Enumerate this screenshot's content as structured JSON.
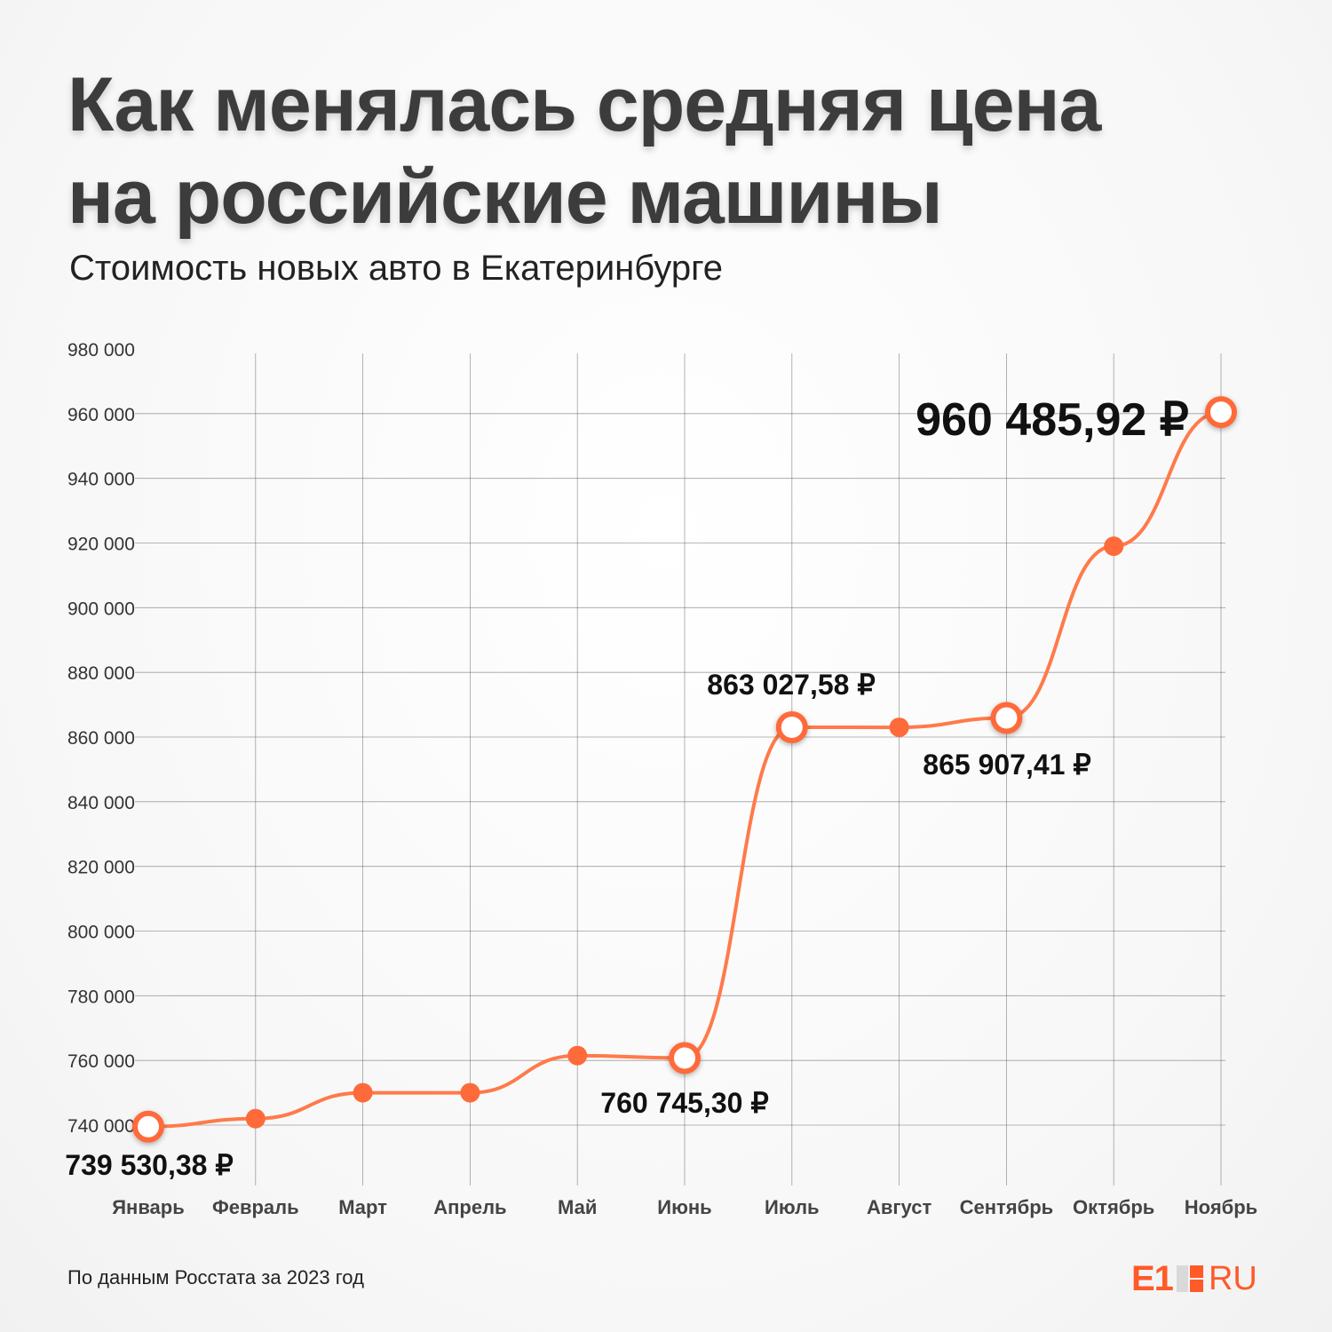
{
  "title_lines": [
    "Как менялась средняя цена",
    "на российские машины"
  ],
  "subtitle": "Стоимость новых авто в Екатеринбурге",
  "source": "По данным Росстата за 2023 год",
  "logo": {
    "e1": "E1",
    "ru": "RU"
  },
  "colors": {
    "line": "#ff7a4a",
    "point": "#ff6a3a",
    "grid": "#555555",
    "text": "#222222"
  },
  "chart_data": {
    "type": "line",
    "categories": [
      "Январь",
      "Февраль",
      "Март",
      "Апрель",
      "Май",
      "Июнь",
      "Июль",
      "Август",
      "Сентябрь",
      "Октябрь",
      "Ноябрь"
    ],
    "values": [
      739530.38,
      742000,
      750000,
      750000,
      761500,
      760745.3,
      863027.58,
      863000,
      865907.41,
      919000,
      960485.92
    ],
    "highlighted": [
      0,
      5,
      6,
      8,
      10
    ],
    "data_labels": [
      {
        "index": 0,
        "text": "739 530,38 ₽"
      },
      {
        "index": 5,
        "text": "760 745,30 ₽"
      },
      {
        "index": 6,
        "text": "863 027,58 ₽"
      },
      {
        "index": 8,
        "text": "865 907,41 ₽"
      },
      {
        "index": 10,
        "text": "960 485,92 ₽"
      }
    ],
    "ylim": [
      740000,
      980000
    ],
    "yticks": [
      740000,
      760000,
      780000,
      800000,
      820000,
      840000,
      860000,
      880000,
      900000,
      920000,
      940000,
      960000,
      980000
    ],
    "ytick_labels": [
      "740 000",
      "760 000",
      "780 000",
      "800 000",
      "820 000",
      "840 000",
      "860 000",
      "880 000",
      "900 000",
      "920 000",
      "940 000",
      "960 000",
      "980 000"
    ],
    "grid": true,
    "xlabel": "",
    "ylabel": ""
  }
}
